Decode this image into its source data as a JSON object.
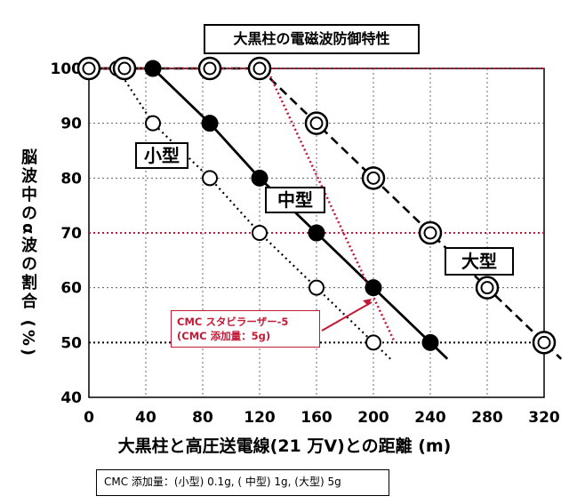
{
  "title": "大黒柱の電磁波防御特性",
  "chart_data": {
    "type": "line",
    "xlabel": "大黒柱と高圧送電線(21 万V)との距離 (m)",
    "ylabel": "脳波中のα波の割合 (%)",
    "xlim": [
      0,
      320
    ],
    "ylim": [
      40,
      100
    ],
    "x_ticks": [
      "0",
      "40",
      "80",
      "120",
      "160",
      "200",
      "240",
      "280",
      "320"
    ],
    "y_ticks": [
      "40",
      "50",
      "60",
      "70",
      "80",
      "90",
      "100"
    ],
    "grid": true,
    "series": [
      {
        "name": "小型",
        "marker": "open-circle",
        "line_style": "dotted",
        "x": [
          0,
          20,
          45,
          85,
          120,
          160,
          200
        ],
        "y": [
          100,
          100,
          90,
          80,
          70,
          60,
          50
        ]
      },
      {
        "name": "中型",
        "marker": "filled-circle",
        "line_style": "solid",
        "x": [
          0,
          45,
          85,
          120,
          160,
          200,
          240
        ],
        "y": [
          100,
          100,
          90,
          80,
          70,
          60,
          50
        ]
      },
      {
        "name": "大型",
        "marker": "double-circle",
        "line_style": "dashed",
        "x": [
          0,
          25,
          85,
          120,
          160,
          200,
          240,
          280,
          320
        ],
        "y": [
          100,
          100,
          100,
          100,
          90,
          80,
          70,
          60,
          50
        ]
      },
      {
        "name": "CMC スタビラーザー-5",
        "marker": "none",
        "line_style": "red-dotted",
        "color": "#c21a36",
        "x": [
          0,
          125,
          215
        ],
        "y": [
          100,
          100,
          50
        ]
      }
    ],
    "reference_lines": [
      {
        "y": 100,
        "color": "#c21a36",
        "style": "dotted"
      },
      {
        "y": 70,
        "color": "#c21a36",
        "style": "dotted"
      },
      {
        "y": 50,
        "color": "#000000",
        "style": "dotted"
      }
    ],
    "annotation": {
      "line1": "CMC スタビラーザー-5",
      "line2": "(CMC 添加量：5g)",
      "arrow_to": {
        "x": 200,
        "y": 58
      }
    },
    "labels": {
      "small": "小型",
      "medium": "中型",
      "large": "大型"
    }
  },
  "note": "CMC 添加量：(小型) 0.1g, ( 中型) 1g, (大型) 5g",
  "colors": {
    "accent_red": "#c21a36",
    "ink": "#000000"
  }
}
